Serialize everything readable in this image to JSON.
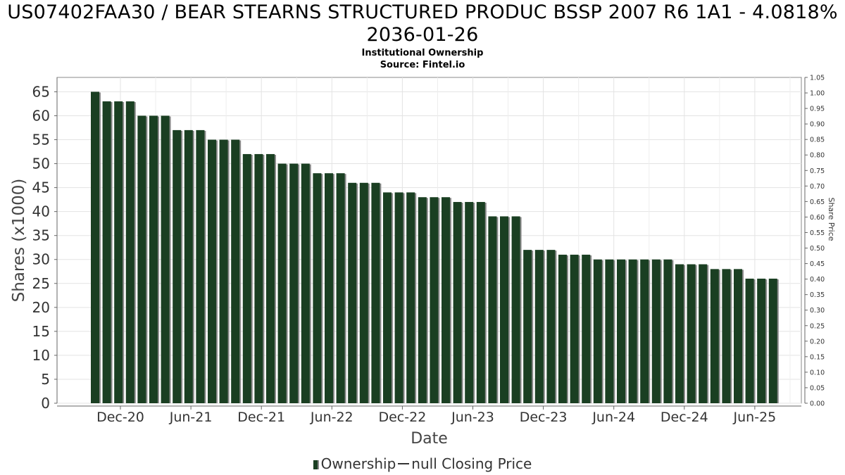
{
  "chart_data": {
    "type": "bar",
    "title": "US07402FAA30 / BEAR STEARNS STRUCTURED PRODUC BSSP 2007 R6 1A1 - 4.0818% 2036-01-26",
    "subtitle_lines": [
      "Institutional Ownership",
      "Source: Fintel.io"
    ],
    "xlabel": "Date",
    "ylabel": "Shares (x1000)",
    "y2label": "Share Price",
    "ylim": [
      0,
      68
    ],
    "yticks": [
      0,
      5,
      10,
      15,
      20,
      25,
      30,
      35,
      40,
      45,
      50,
      55,
      60,
      65
    ],
    "y2lim": [
      0,
      1.05
    ],
    "y2ticks": [
      "0.00",
      "0.05",
      "0.10",
      "0.15",
      "0.20",
      "0.25",
      "0.30",
      "0.35",
      "0.40",
      "0.45",
      "0.50",
      "0.55",
      "0.60",
      "0.65",
      "0.70",
      "0.75",
      "0.80",
      "0.85",
      "0.90",
      "0.95",
      "1.00",
      "1.05"
    ],
    "xticks": [
      "Dec-20",
      "Jun-21",
      "Dec-21",
      "Jun-22",
      "Dec-22",
      "Jun-23",
      "Dec-23",
      "Jun-24",
      "Dec-24",
      "Jun-25"
    ],
    "grid": true,
    "legend": {
      "placement": "bottom",
      "entries": [
        {
          "label": "Ownership",
          "color": "#1a3f22",
          "kind": "bar"
        },
        {
          "label": "null Closing Price",
          "color": "#333333",
          "kind": "line"
        }
      ]
    },
    "series": [
      {
        "name": "Ownership",
        "color": "#1a3f22",
        "values": [
          65,
          63,
          63,
          63,
          60,
          60,
          60,
          57,
          57,
          57,
          55,
          55,
          55,
          52,
          52,
          52,
          50,
          50,
          50,
          48,
          48,
          48,
          46,
          46,
          46,
          44,
          44,
          44,
          43,
          43,
          43,
          42,
          42,
          42,
          39,
          39,
          39,
          32,
          32,
          32,
          31,
          31,
          31,
          30,
          30,
          30,
          30,
          30,
          30,
          30,
          29,
          29,
          29,
          28,
          28,
          28,
          26,
          26,
          26
        ]
      }
    ]
  }
}
